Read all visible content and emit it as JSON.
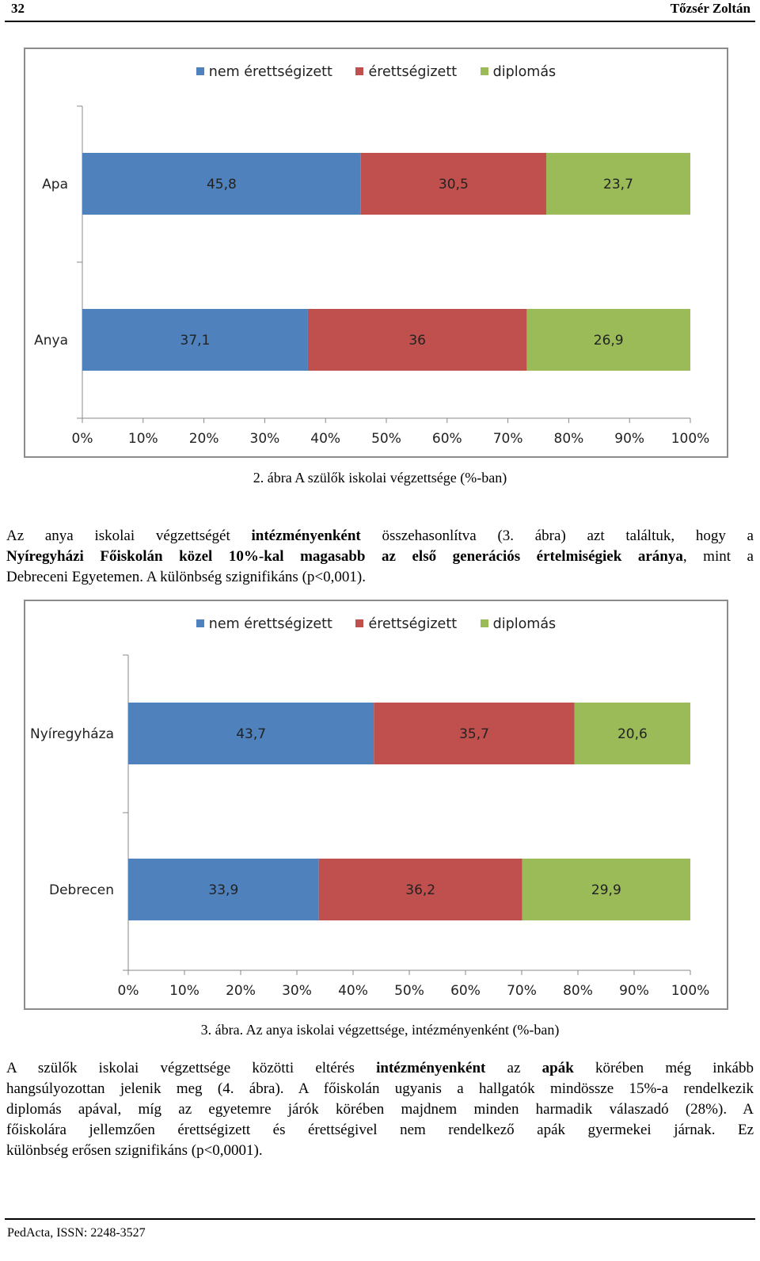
{
  "header": {
    "page_number": "32",
    "author": "Tőzsér Zoltán"
  },
  "legend": [
    {
      "label": "nem érettségizett",
      "color": "#4f81bd"
    },
    {
      "label": "érettségizett",
      "color": "#c0504d"
    },
    {
      "label": "diplomás",
      "color": "#9bbb59"
    }
  ],
  "chart_data": [
    {
      "type": "bar",
      "orientation": "horizontal",
      "stacked": "percent",
      "categories": [
        "Apa",
        "Anya"
      ],
      "series": [
        {
          "name": "nem érettségizett",
          "values": [
            45.8,
            37.1
          ],
          "labels": [
            "45,8",
            "37,1"
          ]
        },
        {
          "name": "érettségizett",
          "values": [
            30.5,
            36.0
          ],
          "labels": [
            "30,5",
            "36"
          ]
        },
        {
          "name": "diplomás",
          "values": [
            23.7,
            26.9
          ],
          "labels": [
            "23,7",
            "26,9"
          ]
        }
      ],
      "xlim": [
        0,
        100
      ],
      "xticks": [
        "0%",
        "10%",
        "20%",
        "30%",
        "40%",
        "50%",
        "60%",
        "70%",
        "80%",
        "90%",
        "100%"
      ],
      "legend_position": "top",
      "grid": false
    },
    {
      "type": "bar",
      "orientation": "horizontal",
      "stacked": "percent",
      "categories": [
        "Nyíregyháza",
        "Debrecen"
      ],
      "series": [
        {
          "name": "nem érettségizett",
          "values": [
            43.7,
            33.9
          ],
          "labels": [
            "43,7",
            "33,9"
          ]
        },
        {
          "name": "érettségizett",
          "values": [
            35.7,
            36.2
          ],
          "labels": [
            "35,7",
            "36,2"
          ]
        },
        {
          "name": "diplomás",
          "values": [
            20.6,
            29.9
          ],
          "labels": [
            "20,6",
            "29,9"
          ]
        }
      ],
      "xlim": [
        0,
        100
      ],
      "xticks": [
        "0%",
        "10%",
        "20%",
        "30%",
        "40%",
        "50%",
        "60%",
        "70%",
        "80%",
        "90%",
        "100%"
      ],
      "legend_position": "top",
      "grid": false
    }
  ],
  "captions": {
    "fig2": "2. ábra A szülők iskolai végzettsége (%-ban)",
    "fig3": "3. ábra. Az anya iskolai végzettsége, intézményenként (%-ban)"
  },
  "paragraph1": {
    "l1a": "Az anya iskolai végzettségét ",
    "l1b": "intézményenként",
    "l1c": " összehasonlítva (3. ábra) azt találtuk, hogy a",
    "l2a": "Nyíregyházi Főiskolán közel 10%-kal magasabb az első generációs értelmiségiek aránya",
    "l2b": ", mint a",
    "l3": "Debreceni Egyetemen. A különbség szignifikáns (p<0,001)."
  },
  "paragraph2": {
    "l1a": "A szülők iskolai végzettsége közötti eltérés ",
    "l1b": "intézményenként",
    "l1c": " az ",
    "l1d": "apák",
    "l1e": " körében még inkább",
    "l2": "hangsúlyozottan jelenik meg (4. ábra). A főiskolán ugyanis a hallgatók mindössze 15%-a rendelkezik",
    "l3": "diplomás apával, míg az egyetemre járók körében majdnem minden harmadik válaszadó (28%). A",
    "l4": "főiskolára jellemzően érettségizett és érettségivel nem rendelkező apák gyermekei járnak. Ez",
    "l5": "különbség erősen szignifikáns (p<0,0001)."
  },
  "footer": {
    "text": "PedActa, ISSN: 2248-3527"
  }
}
